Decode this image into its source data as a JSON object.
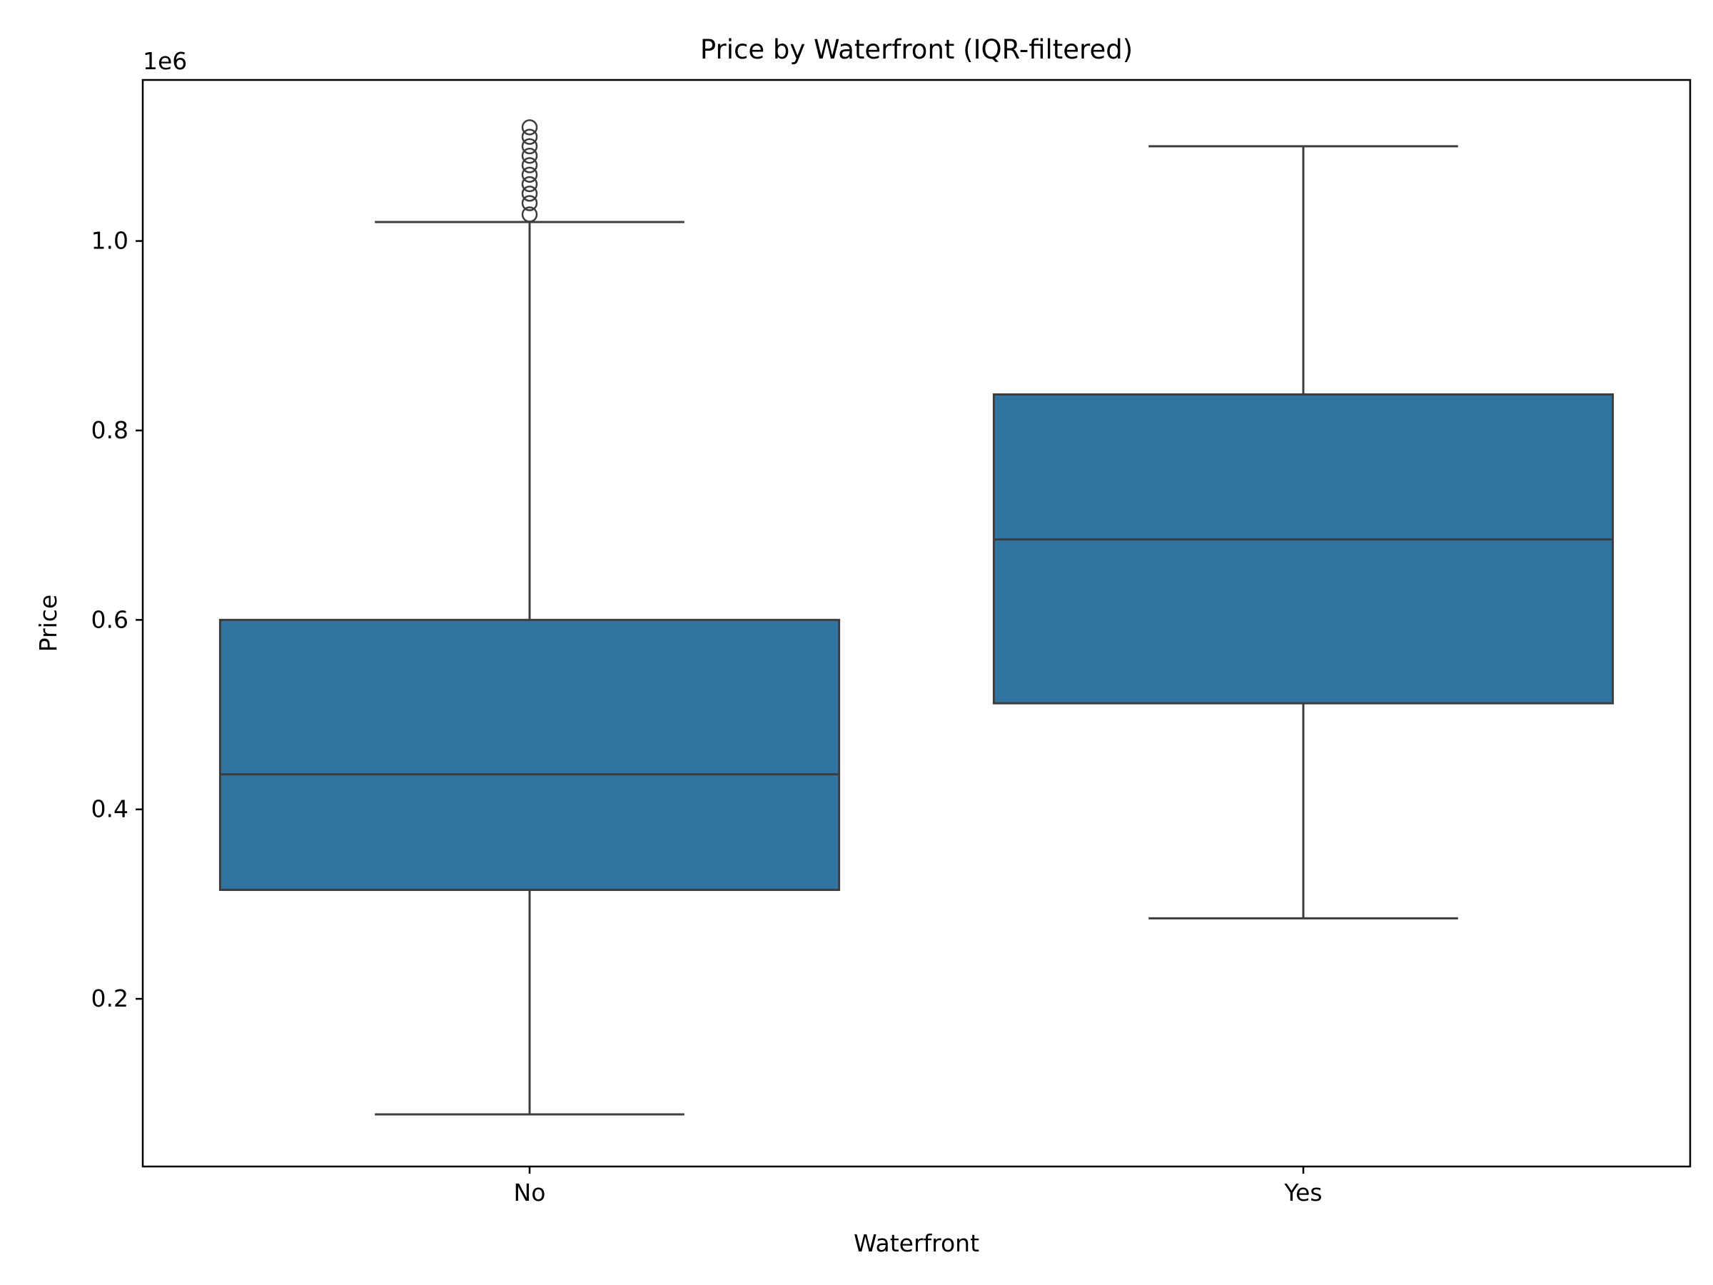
{
  "chart_data": {
    "type": "box",
    "title": "Price by Waterfront (IQR-filtered)",
    "xlabel": "Waterfront",
    "ylabel": "Price",
    "y_multiplier_label": "1e6",
    "ylim": [
      23000,
      1170000
    ],
    "y_ticks": [
      200000,
      400000,
      600000,
      800000,
      1000000
    ],
    "y_tick_labels": [
      "0.2",
      "0.4",
      "0.6",
      "0.8",
      "1.0"
    ],
    "categories": [
      "No",
      "Yes"
    ],
    "box_color": "#3274a1",
    "line_color": "#3d3d3d",
    "grid": false,
    "boxes": [
      {
        "category": "No",
        "whisker_low": 78000,
        "q1": 315000,
        "median": 437000,
        "q3": 600000,
        "whisker_high": 1020000,
        "outliers": [
          1028000,
          1040000,
          1050000,
          1060000,
          1070000,
          1080000,
          1090000,
          1100000,
          1110000,
          1120000
        ]
      },
      {
        "category": "Yes",
        "whisker_low": 285000,
        "q1": 512000,
        "median": 685000,
        "q3": 838000,
        "whisker_high": 1100000,
        "outliers": []
      }
    ]
  }
}
